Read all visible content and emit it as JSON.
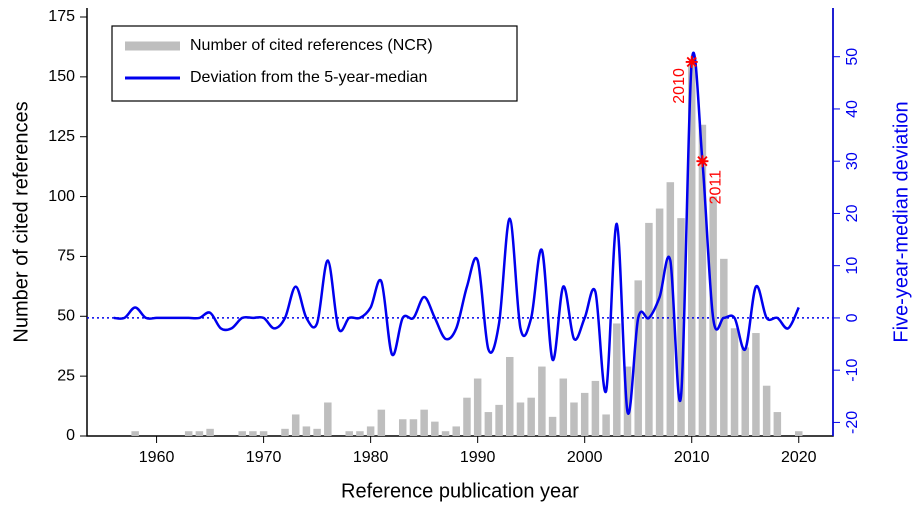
{
  "chart_data": {
    "type": "bar_line",
    "xlabel": "Reference publication year",
    "ylabel": "Number of cited references",
    "y2label": "Five-year-median deviation",
    "x": [
      1956,
      1957,
      1958,
      1959,
      1960,
      1961,
      1962,
      1963,
      1964,
      1965,
      1966,
      1967,
      1968,
      1969,
      1970,
      1971,
      1972,
      1973,
      1974,
      1975,
      1976,
      1977,
      1978,
      1979,
      1980,
      1981,
      1982,
      1983,
      1984,
      1985,
      1986,
      1987,
      1988,
      1989,
      1990,
      1991,
      1992,
      1993,
      1994,
      1995,
      1996,
      1997,
      1998,
      1999,
      2000,
      2001,
      2002,
      2003,
      2004,
      2005,
      2006,
      2007,
      2008,
      2009,
      2010,
      2011,
      2012,
      2013,
      2014,
      2015,
      2016,
      2017,
      2018,
      2019,
      2020
    ],
    "series": [
      {
        "name": "Number of cited references (NCR)",
        "type": "bar",
        "color": "#bebebe",
        "values": [
          0,
          0,
          2,
          0,
          0,
          0,
          0,
          2,
          2,
          3,
          0,
          0,
          2,
          2,
          2,
          0,
          3,
          9,
          4,
          3,
          14,
          0,
          2,
          2,
          4,
          11,
          0,
          7,
          7,
          11,
          6,
          2,
          4,
          16,
          24,
          10,
          13,
          33,
          14,
          16,
          29,
          8,
          24,
          14,
          18,
          23,
          9,
          47,
          29,
          65,
          89,
          95,
          106,
          91,
          155,
          130,
          100,
          74,
          45,
          37,
          43,
          21,
          10,
          0,
          2
        ]
      },
      {
        "name": "Deviation from the 5-year-median",
        "type": "line",
        "axis": "y2",
        "color": "#0000ee",
        "values": [
          0,
          0,
          2,
          0,
          0,
          0,
          0,
          0,
          0,
          1,
          -2,
          -2,
          0,
          0,
          0,
          -2,
          0,
          6,
          0,
          -1,
          11,
          -2,
          0,
          0,
          2,
          7,
          -7,
          0,
          0,
          4,
          0,
          -4,
          -2,
          6,
          11,
          -6,
          -1,
          19,
          -2,
          0,
          13,
          -8,
          6,
          -4,
          0,
          5,
          -14,
          18,
          -18,
          0,
          0,
          4,
          11,
          -15,
          49,
          30,
          0,
          0,
          0,
          -6,
          6,
          0,
          0,
          -2,
          2
        ]
      }
    ],
    "annotations": [
      {
        "x": 2010,
        "label": "2010"
      },
      {
        "x": 2011,
        "label": "2011"
      }
    ],
    "annotation_color": "#ff0000",
    "y2_reference_line": 0,
    "xlim": [
      1953.5,
      2023.2
    ],
    "xticks": [
      1960,
      1970,
      1980,
      1990,
      2000,
      2010,
      2020
    ],
    "ylim": [
      0,
      175
    ],
    "yticks": [
      0,
      25,
      50,
      75,
      100,
      125,
      150,
      175
    ],
    "y2lim": [
      -22.6,
      57.6
    ],
    "y2ticks": [
      -20,
      -10,
      0,
      10,
      20,
      30,
      40,
      50
    ],
    "legend": "top-left"
  }
}
